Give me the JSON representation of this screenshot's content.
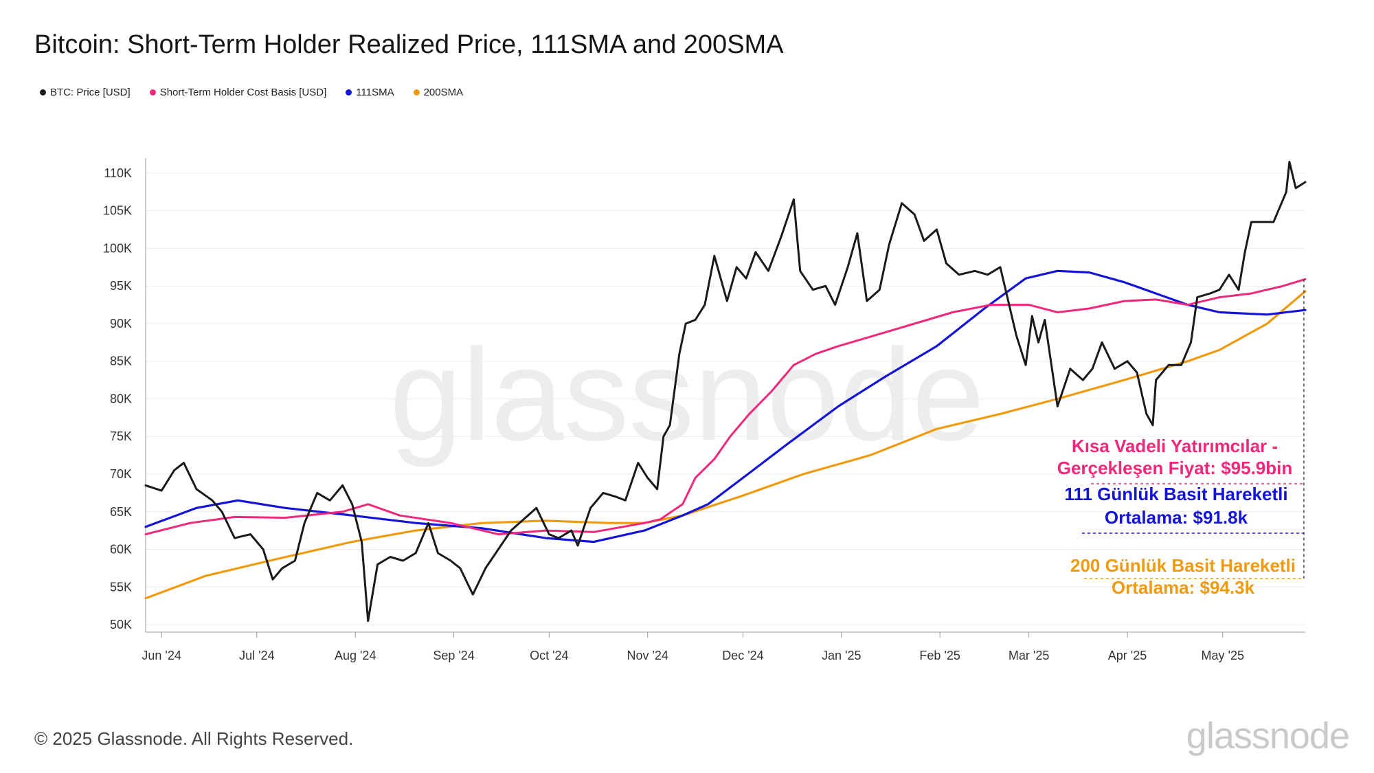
{
  "header": {
    "title": "Bitcoin: Short-Term Holder Realized Price, 111SMA and 200SMA"
  },
  "legend": [
    {
      "label": "BTC: Price [USD]",
      "color": "#1a1a1a"
    },
    {
      "label": "Short-Term Holder Cost Basis [USD]",
      "color": "#f0287c"
    },
    {
      "label": "111SMA",
      "color": "#1414d6"
    },
    {
      "label": "200SMA",
      "color": "#f09a10"
    }
  ],
  "watermark": "glassnode",
  "annotations": {
    "sth_line1": "Kısa Vadeli Yatırımcılar -",
    "sth_line2": "Gerçekleşen Fiyat: $95.9bin",
    "sma111_line1": "111 Günlük Basit Hareketli",
    "sma111_line2": "Ortalama: $91.8k",
    "sma200_line1": "200 Günlük Basit Hareketli",
    "sma200_line2": "Ortalama: $94.3k"
  },
  "footer": {
    "copyright": "© 2025 Glassnode. All Rights Reserved.",
    "logo": "glassnode"
  },
  "chart_data": {
    "type": "line",
    "x_axis": {
      "type": "date",
      "range": [
        "2024-05-27",
        "2025-05-27"
      ],
      "ticks": [
        {
          "date": "2024-06-01",
          "label": "Jun '24"
        },
        {
          "date": "2024-07-01",
          "label": "Jul '24"
        },
        {
          "date": "2024-08-01",
          "label": "Aug '24"
        },
        {
          "date": "2024-09-01",
          "label": "Sep '24"
        },
        {
          "date": "2024-10-01",
          "label": "Oct '24"
        },
        {
          "date": "2024-11-01",
          "label": "Nov '24"
        },
        {
          "date": "2024-12-01",
          "label": "Dec '24"
        },
        {
          "date": "2025-01-01",
          "label": "Jan '25"
        },
        {
          "date": "2025-02-01",
          "label": "Feb '25"
        },
        {
          "date": "2025-03-01",
          "label": "Mar '25"
        },
        {
          "date": "2025-04-01",
          "label": "Apr '25"
        },
        {
          "date": "2025-05-01",
          "label": "May '25"
        }
      ]
    },
    "y_axis": {
      "range": [
        49000,
        112000
      ],
      "ticks": [
        {
          "value": 50000,
          "label": "50K"
        },
        {
          "value": 55000,
          "label": "55K"
        },
        {
          "value": 60000,
          "label": "60K"
        },
        {
          "value": 65000,
          "label": "65K"
        },
        {
          "value": 70000,
          "label": "70K"
        },
        {
          "value": 75000,
          "label": "75K"
        },
        {
          "value": 80000,
          "label": "80K"
        },
        {
          "value": 85000,
          "label": "85K"
        },
        {
          "value": 90000,
          "label": "90K"
        },
        {
          "value": 95000,
          "label": "95K"
        },
        {
          "value": 100000,
          "label": "100K"
        },
        {
          "value": 105000,
          "label": "105K"
        },
        {
          "value": 110000,
          "label": "110K"
        }
      ]
    },
    "grid": "horizontal",
    "legend_position": "top-left",
    "series": [
      {
        "name": "BTC: Price [USD]",
        "color": "#1a1a1a",
        "points": [
          [
            "2024-05-27",
            68500
          ],
          [
            "2024-06-01",
            67800
          ],
          [
            "2024-06-05",
            70500
          ],
          [
            "2024-06-08",
            71500
          ],
          [
            "2024-06-12",
            68000
          ],
          [
            "2024-06-17",
            66500
          ],
          [
            "2024-06-20",
            65000
          ],
          [
            "2024-06-24",
            61500
          ],
          [
            "2024-06-29",
            62000
          ],
          [
            "2024-07-03",
            60000
          ],
          [
            "2024-07-06",
            56000
          ],
          [
            "2024-07-09",
            57500
          ],
          [
            "2024-07-13",
            58500
          ],
          [
            "2024-07-16",
            63500
          ],
          [
            "2024-07-20",
            67500
          ],
          [
            "2024-07-24",
            66500
          ],
          [
            "2024-07-28",
            68500
          ],
          [
            "2024-07-31",
            66000
          ],
          [
            "2024-08-03",
            61000
          ],
          [
            "2024-08-05",
            50500
          ],
          [
            "2024-08-08",
            58000
          ],
          [
            "2024-08-12",
            59000
          ],
          [
            "2024-08-16",
            58500
          ],
          [
            "2024-08-20",
            59500
          ],
          [
            "2024-08-24",
            63500
          ],
          [
            "2024-08-27",
            59500
          ],
          [
            "2024-08-31",
            58500
          ],
          [
            "2024-09-03",
            57500
          ],
          [
            "2024-09-07",
            54000
          ],
          [
            "2024-09-11",
            57500
          ],
          [
            "2024-09-15",
            60000
          ],
          [
            "2024-09-19",
            62500
          ],
          [
            "2024-09-23",
            64000
          ],
          [
            "2024-09-27",
            65500
          ],
          [
            "2024-10-01",
            62000
          ],
          [
            "2024-10-04",
            61500
          ],
          [
            "2024-10-08",
            62500
          ],
          [
            "2024-10-10",
            60500
          ],
          [
            "2024-10-14",
            65500
          ],
          [
            "2024-10-18",
            67500
          ],
          [
            "2024-10-22",
            67000
          ],
          [
            "2024-10-25",
            66500
          ],
          [
            "2024-10-29",
            71500
          ],
          [
            "2024-11-01",
            69500
          ],
          [
            "2024-11-04",
            68000
          ],
          [
            "2024-11-06",
            75000
          ],
          [
            "2024-11-08",
            76500
          ],
          [
            "2024-11-11",
            86000
          ],
          [
            "2024-11-13",
            90000
          ],
          [
            "2024-11-16",
            90500
          ],
          [
            "2024-11-19",
            92500
          ],
          [
            "2024-11-22",
            99000
          ],
          [
            "2024-11-26",
            93000
          ],
          [
            "2024-11-29",
            97500
          ],
          [
            "2024-12-02",
            96000
          ],
          [
            "2024-12-05",
            99500
          ],
          [
            "2024-12-09",
            97000
          ],
          [
            "2024-12-13",
            101500
          ],
          [
            "2024-12-17",
            106500
          ],
          [
            "2024-12-19",
            97000
          ],
          [
            "2024-12-23",
            94500
          ],
          [
            "2024-12-27",
            95000
          ],
          [
            "2024-12-30",
            92500
          ],
          [
            "2025-01-03",
            97500
          ],
          [
            "2025-01-06",
            102000
          ],
          [
            "2025-01-09",
            93000
          ],
          [
            "2025-01-13",
            94500
          ],
          [
            "2025-01-16",
            100500
          ],
          [
            "2025-01-20",
            106000
          ],
          [
            "2025-01-24",
            104500
          ],
          [
            "2025-01-27",
            101000
          ],
          [
            "2025-01-31",
            102500
          ],
          [
            "2025-02-03",
            98000
          ],
          [
            "2025-02-07",
            96500
          ],
          [
            "2025-02-12",
            97000
          ],
          [
            "2025-02-16",
            96500
          ],
          [
            "2025-02-20",
            97500
          ],
          [
            "2025-02-25",
            88500
          ],
          [
            "2025-02-28",
            84500
          ],
          [
            "2025-03-02",
            91000
          ],
          [
            "2025-03-04",
            87500
          ],
          [
            "2025-03-06",
            90500
          ],
          [
            "2025-03-10",
            79000
          ],
          [
            "2025-03-14",
            84000
          ],
          [
            "2025-03-18",
            82500
          ],
          [
            "2025-03-21",
            84000
          ],
          [
            "2025-03-24",
            87500
          ],
          [
            "2025-03-28",
            84000
          ],
          [
            "2025-04-01",
            85000
          ],
          [
            "2025-04-04",
            83500
          ],
          [
            "2025-04-07",
            78000
          ],
          [
            "2025-04-09",
            76500
          ],
          [
            "2025-04-10",
            82500
          ],
          [
            "2025-04-14",
            84500
          ],
          [
            "2025-04-18",
            84500
          ],
          [
            "2025-04-21",
            87500
          ],
          [
            "2025-04-23",
            93500
          ],
          [
            "2025-04-27",
            94000
          ],
          [
            "2025-04-30",
            94500
          ],
          [
            "2025-05-03",
            96500
          ],
          [
            "2025-05-06",
            94500
          ],
          [
            "2025-05-08",
            99500
          ],
          [
            "2025-05-10",
            103500
          ],
          [
            "2025-05-14",
            103500
          ],
          [
            "2025-05-17",
            103500
          ],
          [
            "2025-05-21",
            107500
          ],
          [
            "2025-05-22",
            111500
          ],
          [
            "2025-05-24",
            108000
          ],
          [
            "2025-05-27",
            108800
          ]
        ]
      },
      {
        "name": "Short-Term Holder Cost Basis [USD]",
        "color": "#f0287c",
        "points": [
          [
            "2024-05-27",
            62000
          ],
          [
            "2024-06-10",
            63500
          ],
          [
            "2024-06-24",
            64300
          ],
          [
            "2024-07-10",
            64200
          ],
          [
            "2024-07-28",
            65000
          ],
          [
            "2024-08-05",
            66000
          ],
          [
            "2024-08-15",
            64500
          ],
          [
            "2024-08-31",
            63500
          ],
          [
            "2024-09-15",
            62000
          ],
          [
            "2024-09-30",
            62500
          ],
          [
            "2024-10-15",
            62300
          ],
          [
            "2024-10-31",
            63500
          ],
          [
            "2024-11-05",
            64000
          ],
          [
            "2024-11-12",
            66000
          ],
          [
            "2024-11-16",
            69500
          ],
          [
            "2024-11-22",
            72000
          ],
          [
            "2024-11-27",
            75000
          ],
          [
            "2024-12-03",
            78000
          ],
          [
            "2024-12-10",
            81000
          ],
          [
            "2024-12-17",
            84500
          ],
          [
            "2024-12-24",
            86000
          ],
          [
            "2024-12-31",
            87000
          ],
          [
            "2025-01-12",
            88500
          ],
          [
            "2025-01-24",
            90000
          ],
          [
            "2025-02-05",
            91500
          ],
          [
            "2025-02-17",
            92500
          ],
          [
            "2025-03-01",
            92500
          ],
          [
            "2025-03-10",
            91500
          ],
          [
            "2025-03-20",
            92000
          ],
          [
            "2025-03-31",
            93000
          ],
          [
            "2025-04-10",
            93200
          ],
          [
            "2025-04-20",
            92500
          ],
          [
            "2025-04-30",
            93500
          ],
          [
            "2025-05-10",
            94000
          ],
          [
            "2025-05-20",
            95000
          ],
          [
            "2025-05-27",
            95900
          ]
        ]
      },
      {
        "name": "111SMA",
        "color": "#1414d6",
        "points": [
          [
            "2024-05-27",
            63000
          ],
          [
            "2024-06-12",
            65500
          ],
          [
            "2024-06-25",
            66500
          ],
          [
            "2024-07-10",
            65500
          ],
          [
            "2024-07-31",
            64500
          ],
          [
            "2024-08-20",
            63500
          ],
          [
            "2024-09-10",
            62800
          ],
          [
            "2024-09-30",
            61500
          ],
          [
            "2024-10-15",
            61000
          ],
          [
            "2024-10-31",
            62500
          ],
          [
            "2024-11-12",
            64500
          ],
          [
            "2024-11-20",
            66000
          ],
          [
            "2024-12-01",
            69500
          ],
          [
            "2024-12-15",
            74000
          ],
          [
            "2024-12-31",
            79000
          ],
          [
            "2025-01-15",
            83000
          ],
          [
            "2025-01-31",
            87000
          ],
          [
            "2025-02-15",
            92000
          ],
          [
            "2025-02-28",
            96000
          ],
          [
            "2025-03-10",
            97000
          ],
          [
            "2025-03-20",
            96800
          ],
          [
            "2025-03-31",
            95500
          ],
          [
            "2025-04-10",
            94000
          ],
          [
            "2025-04-20",
            92500
          ],
          [
            "2025-04-30",
            91500
          ],
          [
            "2025-05-15",
            91200
          ],
          [
            "2025-05-27",
            91800
          ]
        ]
      },
      {
        "name": "200SMA",
        "color": "#f09a10",
        "points": [
          [
            "2024-05-27",
            53500
          ],
          [
            "2024-06-15",
            56500
          ],
          [
            "2024-07-05",
            58500
          ],
          [
            "2024-07-31",
            61000
          ],
          [
            "2024-08-20",
            62500
          ],
          [
            "2024-09-10",
            63500
          ],
          [
            "2024-09-30",
            63800
          ],
          [
            "2024-10-20",
            63500
          ],
          [
            "2024-10-31",
            63500
          ],
          [
            "2024-11-12",
            64500
          ],
          [
            "2024-11-30",
            67000
          ],
          [
            "2024-12-20",
            70000
          ],
          [
            "2025-01-10",
            72500
          ],
          [
            "2025-01-31",
            76000
          ],
          [
            "2025-02-20",
            78000
          ],
          [
            "2025-03-10",
            80000
          ],
          [
            "2025-03-31",
            82500
          ],
          [
            "2025-04-20",
            85000
          ],
          [
            "2025-04-30",
            86500
          ],
          [
            "2025-05-15",
            90000
          ],
          [
            "2025-05-27",
            94300
          ]
        ]
      }
    ]
  }
}
